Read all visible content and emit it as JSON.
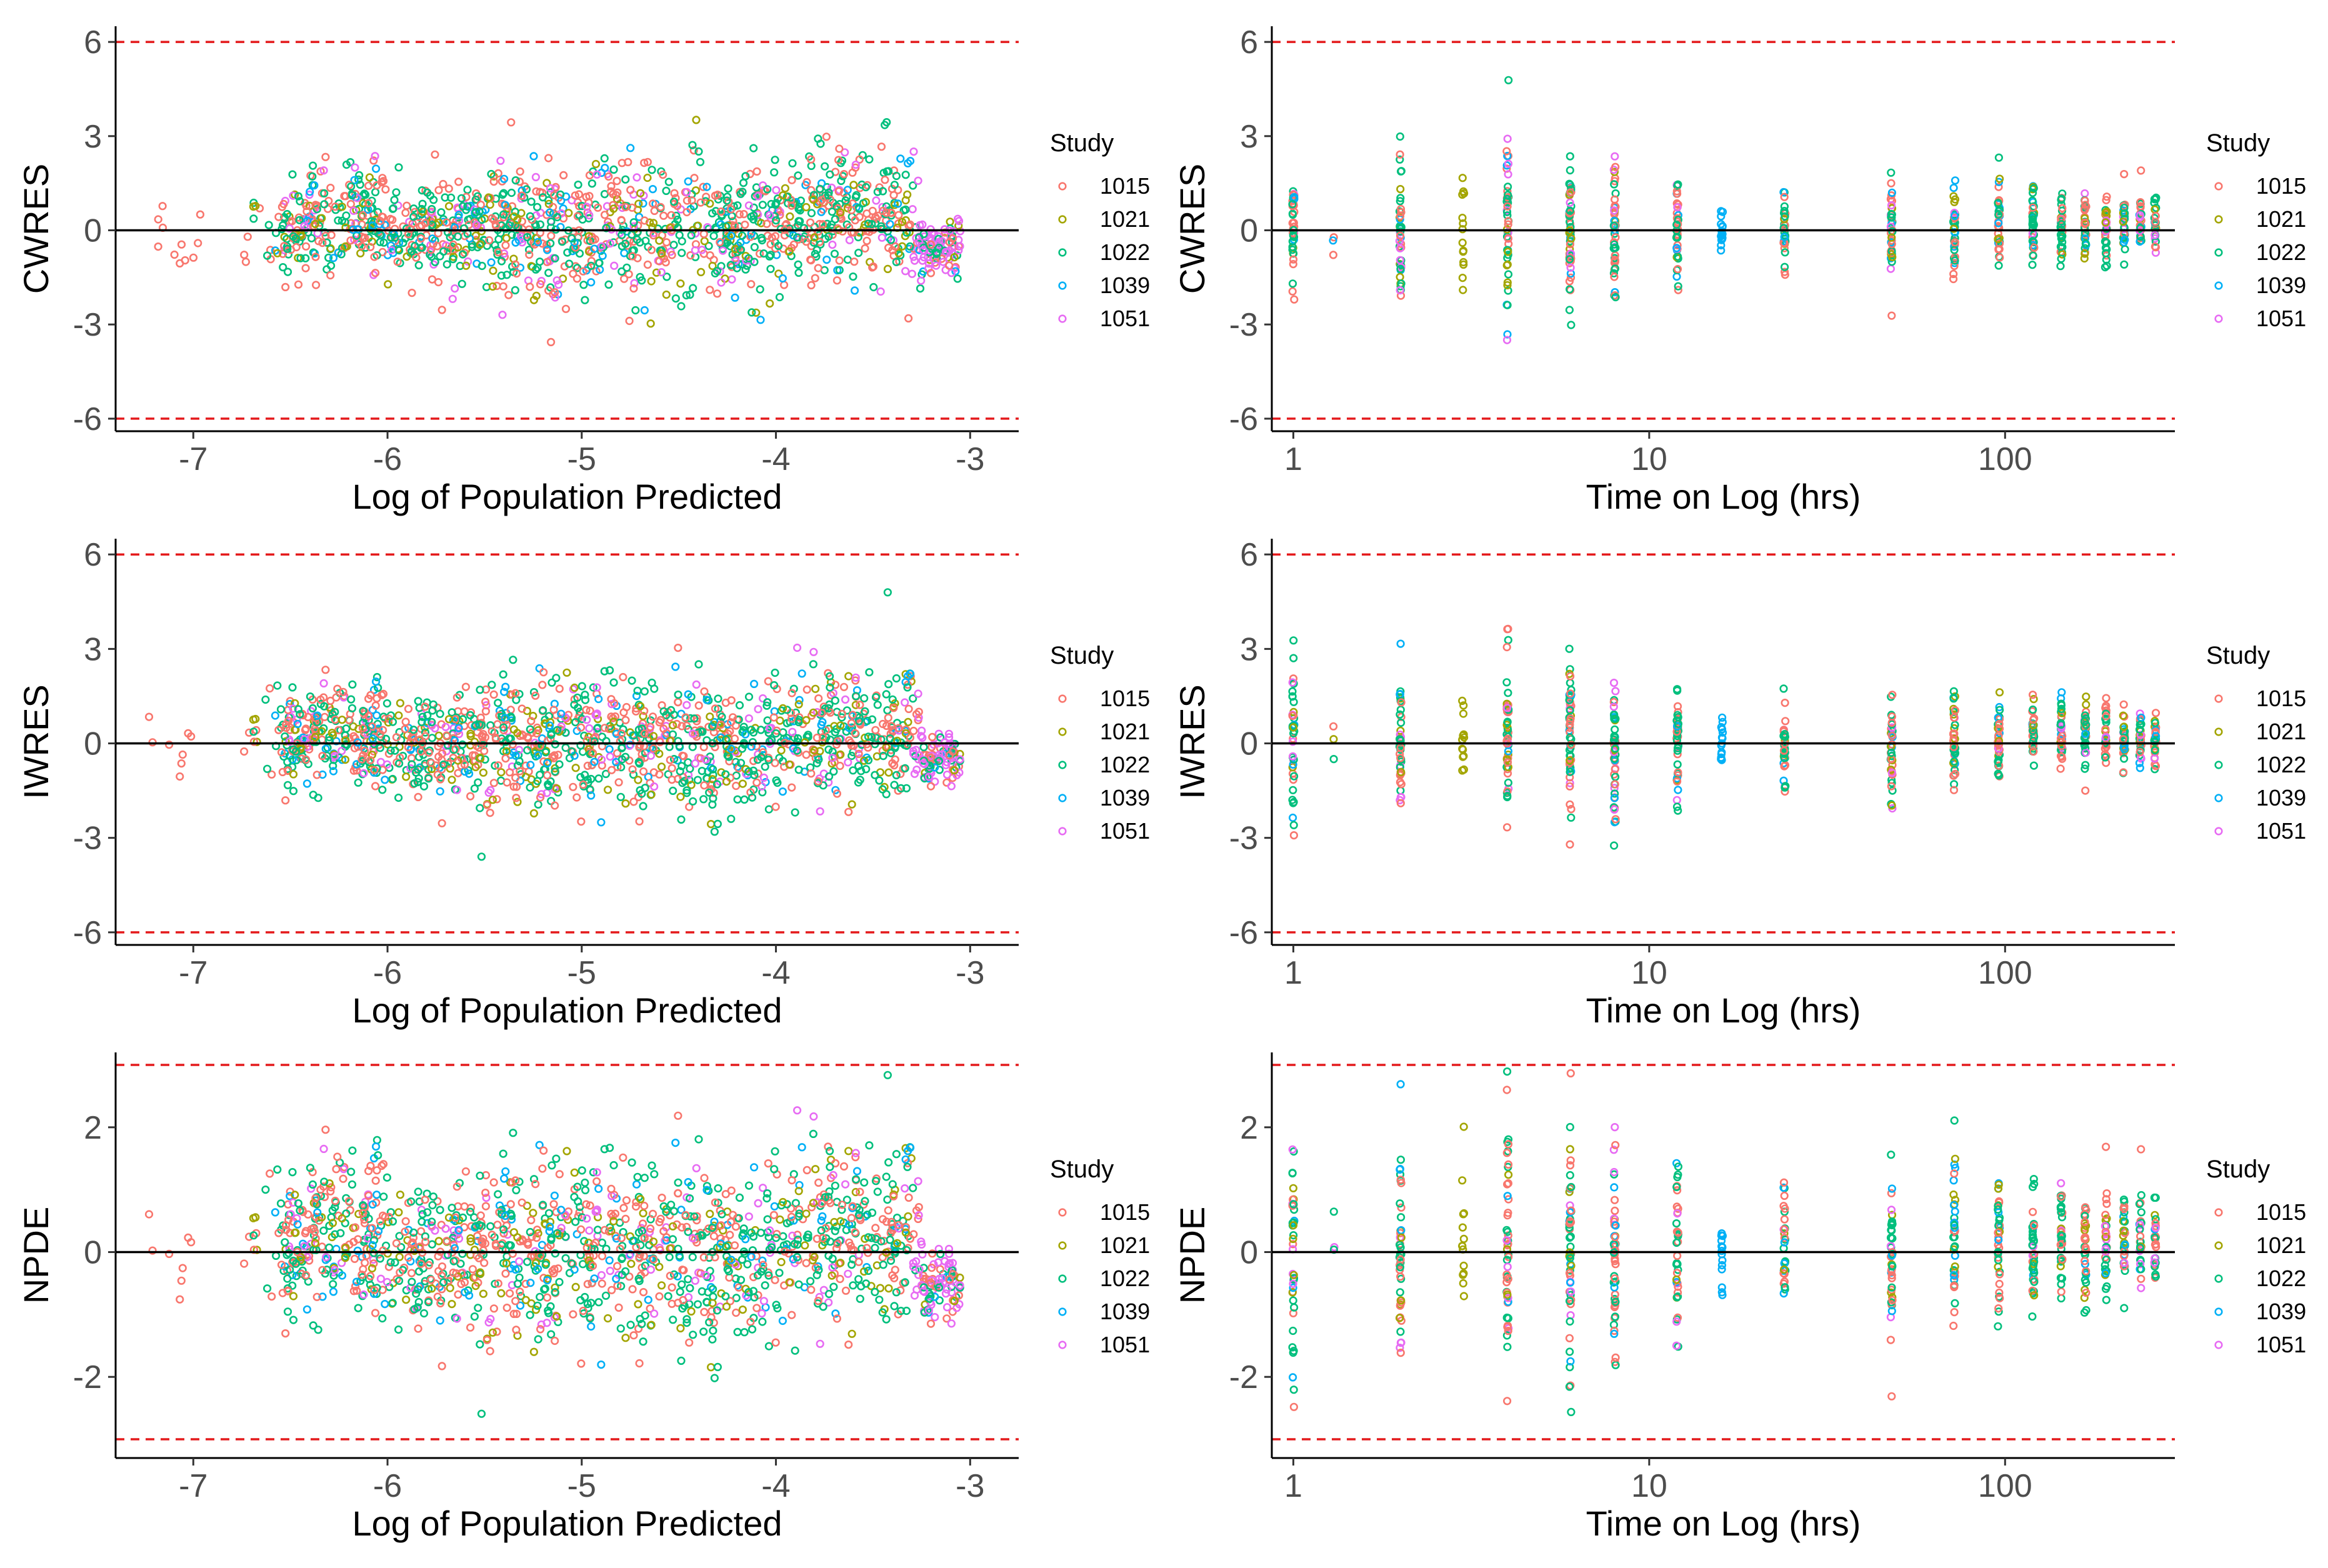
{
  "chart_data": [
    {
      "id": "cwres_pred",
      "type": "scatter",
      "point_style": "open-circle",
      "xlabel": "Log of Population Predicted",
      "ylabel": "CWRES",
      "xscale": "linear",
      "xlim": [
        -7.4,
        -2.75
      ],
      "ylim": [
        -6.4,
        6.5
      ],
      "xticks": [
        -7,
        -6,
        -5,
        -4,
        -3
      ],
      "xtick_labels": [
        "-7",
        "-6",
        "-5",
        "-4",
        "-3"
      ],
      "yticks": [
        -6,
        -3,
        0,
        3,
        6
      ],
      "ytick_labels": [
        "-6",
        "-3",
        "0",
        "3",
        "6"
      ],
      "reference_lines": {
        "solid": [
          0
        ],
        "dashed": [
          -6,
          6
        ]
      },
      "legend": {
        "title": "Study",
        "entries": [
          "1015",
          "1021",
          "1022",
          "1039",
          "1051"
        ],
        "placement": "right"
      }
    },
    {
      "id": "cwres_time",
      "type": "scatter",
      "point_style": "open-circle",
      "xlabel": "Time on Log (hrs)",
      "ylabel": "CWRES",
      "xscale": "log",
      "xlim": [
        0.87,
        300
      ],
      "ylim": [
        -6.4,
        6.5
      ],
      "xticks": [
        1,
        10,
        100
      ],
      "xtick_labels": [
        "1",
        "10",
        "100"
      ],
      "yticks": [
        -6,
        -3,
        0,
        3,
        6
      ],
      "ytick_labels": [
        "-6",
        "-3",
        "0",
        "3",
        "6"
      ],
      "reference_lines": {
        "solid": [
          0
        ],
        "dashed": [
          -6,
          6
        ]
      },
      "legend": {
        "title": "Study",
        "entries": [
          "1015",
          "1021",
          "1022",
          "1039",
          "1051"
        ],
        "placement": "right"
      }
    },
    {
      "id": "iwres_pred",
      "type": "scatter",
      "point_style": "open-circle",
      "xlabel": "Log of Population Predicted",
      "ylabel": "IWRES",
      "xscale": "linear",
      "xlim": [
        -7.4,
        -2.75
      ],
      "ylim": [
        -6.4,
        6.5
      ],
      "xticks": [
        -7,
        -6,
        -5,
        -4,
        -3
      ],
      "xtick_labels": [
        "-7",
        "-6",
        "-5",
        "-4",
        "-3"
      ],
      "yticks": [
        -6,
        -3,
        0,
        3,
        6
      ],
      "ytick_labels": [
        "-6",
        "-3",
        "0",
        "3",
        "6"
      ],
      "reference_lines": {
        "solid": [
          0
        ],
        "dashed": [
          -6,
          6
        ]
      },
      "legend": {
        "title": "Study",
        "entries": [
          "1015",
          "1021",
          "1022",
          "1039",
          "1051"
        ],
        "placement": "right"
      }
    },
    {
      "id": "iwres_time",
      "type": "scatter",
      "point_style": "open-circle",
      "xlabel": "Time on Log (hrs)",
      "ylabel": "IWRES",
      "xscale": "log",
      "xlim": [
        0.87,
        300
      ],
      "ylim": [
        -6.4,
        6.5
      ],
      "xticks": [
        1,
        10,
        100
      ],
      "xtick_labels": [
        "1",
        "10",
        "100"
      ],
      "yticks": [
        -6,
        -3,
        0,
        3,
        6
      ],
      "ytick_labels": [
        "-6",
        "-3",
        "0",
        "3",
        "6"
      ],
      "reference_lines": {
        "solid": [
          0
        ],
        "dashed": [
          -6,
          6
        ]
      },
      "legend": {
        "title": "Study",
        "entries": [
          "1015",
          "1021",
          "1022",
          "1039",
          "1051"
        ],
        "placement": "right"
      }
    },
    {
      "id": "npde_pred",
      "type": "scatter",
      "point_style": "open-circle",
      "xlabel": "Log of Population Predicted",
      "ylabel": "NPDE",
      "xscale": "linear",
      "xlim": [
        -7.4,
        -2.75
      ],
      "ylim": [
        -3.3,
        3.2
      ],
      "xticks": [
        -7,
        -6,
        -5,
        -4,
        -3
      ],
      "xtick_labels": [
        "-7",
        "-6",
        "-5",
        "-4",
        "-3"
      ],
      "yticks": [
        -2,
        0,
        2
      ],
      "ytick_labels": [
        "-2",
        "0",
        "2"
      ],
      "reference_lines": {
        "solid": [
          0
        ],
        "dashed": [
          -3,
          3
        ]
      },
      "legend": {
        "title": "Study",
        "entries": [
          "1015",
          "1021",
          "1022",
          "1039",
          "1051"
        ],
        "placement": "right"
      }
    },
    {
      "id": "npde_time",
      "type": "scatter",
      "point_style": "open-circle",
      "xlabel": "Time on Log (hrs)",
      "ylabel": "NPDE",
      "xscale": "log",
      "xlim": [
        0.87,
        300
      ],
      "ylim": [
        -3.3,
        3.2
      ],
      "xticks": [
        1,
        10,
        100
      ],
      "xtick_labels": [
        "1",
        "10",
        "100"
      ],
      "yticks": [
        -2,
        0,
        2
      ],
      "ytick_labels": [
        "-2",
        "0",
        "2"
      ],
      "reference_lines": {
        "solid": [
          0
        ],
        "dashed": [
          -3,
          3
        ]
      },
      "legend": {
        "title": "Study",
        "entries": [
          "1015",
          "1021",
          "1022",
          "1039",
          "1051"
        ],
        "placement": "right"
      }
    }
  ],
  "studies": [
    {
      "name": "1015",
      "color": "#F8766D"
    },
    {
      "name": "1021",
      "color": "#A3A500"
    },
    {
      "name": "1022",
      "color": "#00BF7D"
    },
    {
      "name": "1039",
      "color": "#00B0F6"
    },
    {
      "name": "1051",
      "color": "#E76BF3"
    }
  ],
  "time_points_hrs": [
    1,
    1.3,
    2,
    3,
    4,
    6,
    8,
    12,
    16,
    24,
    48,
    72,
    96,
    120,
    144,
    168,
    192,
    216,
    240,
    264
  ],
  "colors": {
    "zero_line": "#000000",
    "limit_line": "#e41a1c",
    "axis": "#000000",
    "tick_text": "#4d4d4d"
  }
}
